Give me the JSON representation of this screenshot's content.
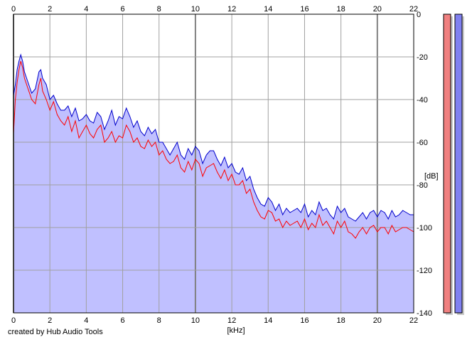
{
  "credit": "created by Hub Audio Tools",
  "chart_data": {
    "type": "area",
    "xlabel": "[kHz]",
    "ylabel": "[dB]",
    "xlim": [
      0,
      22
    ],
    "ylim": [
      -140,
      0
    ],
    "xticks": [
      "0",
      "2",
      "4",
      "6",
      "8",
      "10",
      "12",
      "14",
      "16",
      "18",
      "20",
      "22"
    ],
    "yticks": [
      "0",
      "-20",
      "-40",
      "-60",
      "-80",
      "-100",
      "-120",
      "-140"
    ],
    "grid": true,
    "fill_color": "#c0c0ff",
    "x": [
      0,
      0.1,
      0.2,
      0.3,
      0.4,
      0.5,
      0.6,
      0.8,
      1.0,
      1.2,
      1.4,
      1.5,
      1.6,
      1.8,
      2.0,
      2.2,
      2.4,
      2.6,
      2.8,
      3.0,
      3.2,
      3.4,
      3.6,
      3.8,
      4.0,
      4.2,
      4.4,
      4.6,
      4.8,
      5.0,
      5.2,
      5.4,
      5.6,
      5.8,
      6.0,
      6.2,
      6.4,
      6.6,
      6.8,
      7.0,
      7.2,
      7.4,
      7.6,
      7.8,
      8.0,
      8.2,
      8.4,
      8.6,
      8.8,
      9.0,
      9.2,
      9.4,
      9.6,
      9.8,
      10.0,
      10.2,
      10.4,
      10.6,
      10.8,
      11.0,
      11.2,
      11.4,
      11.6,
      11.8,
      12.0,
      12.2,
      12.4,
      12.6,
      12.8,
      13.0,
      13.2,
      13.4,
      13.6,
      13.8,
      14.0,
      14.2,
      14.4,
      14.6,
      14.8,
      15.0,
      15.2,
      15.4,
      15.6,
      15.8,
      16.0,
      16.2,
      16.4,
      16.6,
      16.8,
      17.0,
      17.2,
      17.4,
      17.6,
      17.8,
      18.0,
      18.2,
      18.4,
      18.6,
      18.8,
      19.0,
      19.2,
      19.4,
      19.6,
      19.8,
      20.0,
      20.2,
      20.4,
      20.6,
      20.8,
      21.0,
      21.2,
      21.4,
      21.6,
      21.8,
      22.0
    ],
    "series": [
      {
        "color": "#ff0000",
        "values": [
          -56,
          -40,
          -32,
          -26,
          -22,
          -25,
          -30,
          -35,
          -40,
          -42,
          -33,
          -30,
          -36,
          -40,
          -45,
          -41,
          -47,
          -50,
          -52,
          -48,
          -55,
          -50,
          -58,
          -55,
          -52,
          -56,
          -58,
          -54,
          -52,
          -60,
          -58,
          -55,
          -60,
          -57,
          -58,
          -52,
          -55,
          -60,
          -58,
          -62,
          -63,
          -59,
          -62,
          -60,
          -66,
          -64,
          -68,
          -70,
          -69,
          -66,
          -72,
          -74,
          -69,
          -73,
          -68,
          -70,
          -76,
          -72,
          -71,
          -70,
          -74,
          -77,
          -73,
          -78,
          -75,
          -80,
          -80,
          -78,
          -84,
          -82,
          -88,
          -92,
          -95,
          -96,
          -92,
          -93,
          -97,
          -96,
          -100,
          -97,
          -99,
          -98,
          -97,
          -100,
          -96,
          -101,
          -98,
          -100,
          -94,
          -99,
          -97,
          -100,
          -103,
          -97,
          -100,
          -97,
          -102,
          -103,
          -105,
          -102,
          -100,
          -103,
          -100,
          -99,
          -102,
          -100,
          -100,
          -103,
          -99,
          -102,
          -101,
          -100,
          -100,
          -101,
          -102
        ]
      },
      {
        "color": "#0000cc",
        "values": [
          -38,
          -33,
          -26,
          -22,
          -19,
          -22,
          -27,
          -32,
          -37,
          -35,
          -27,
          -26,
          -30,
          -33,
          -40,
          -38,
          -42,
          -45,
          -45,
          -43,
          -48,
          -44,
          -50,
          -49,
          -47,
          -50,
          -51,
          -46,
          -48,
          -54,
          -50,
          -45,
          -52,
          -48,
          -49,
          -44,
          -48,
          -53,
          -50,
          -55,
          -57,
          -53,
          -56,
          -54,
          -60,
          -60,
          -63,
          -66,
          -63,
          -60,
          -66,
          -68,
          -63,
          -66,
          -62,
          -64,
          -70,
          -66,
          -64,
          -64,
          -68,
          -71,
          -67,
          -72,
          -70,
          -74,
          -75,
          -72,
          -78,
          -76,
          -82,
          -86,
          -89,
          -90,
          -86,
          -88,
          -92,
          -89,
          -94,
          -91,
          -93,
          -92,
          -91,
          -93,
          -89,
          -95,
          -92,
          -94,
          -88,
          -92,
          -91,
          -94,
          -96,
          -90,
          -93,
          -91,
          -95,
          -96,
          -97,
          -95,
          -93,
          -96,
          -93,
          -92,
          -95,
          -92,
          -93,
          -96,
          -92,
          -95,
          -94,
          -92,
          -93,
          -94,
          -94
        ]
      }
    ],
    "level_meters": [
      {
        "color": "#f08080",
        "value_db": 0
      },
      {
        "color": "#8080f0",
        "value_db": 0
      }
    ]
  }
}
